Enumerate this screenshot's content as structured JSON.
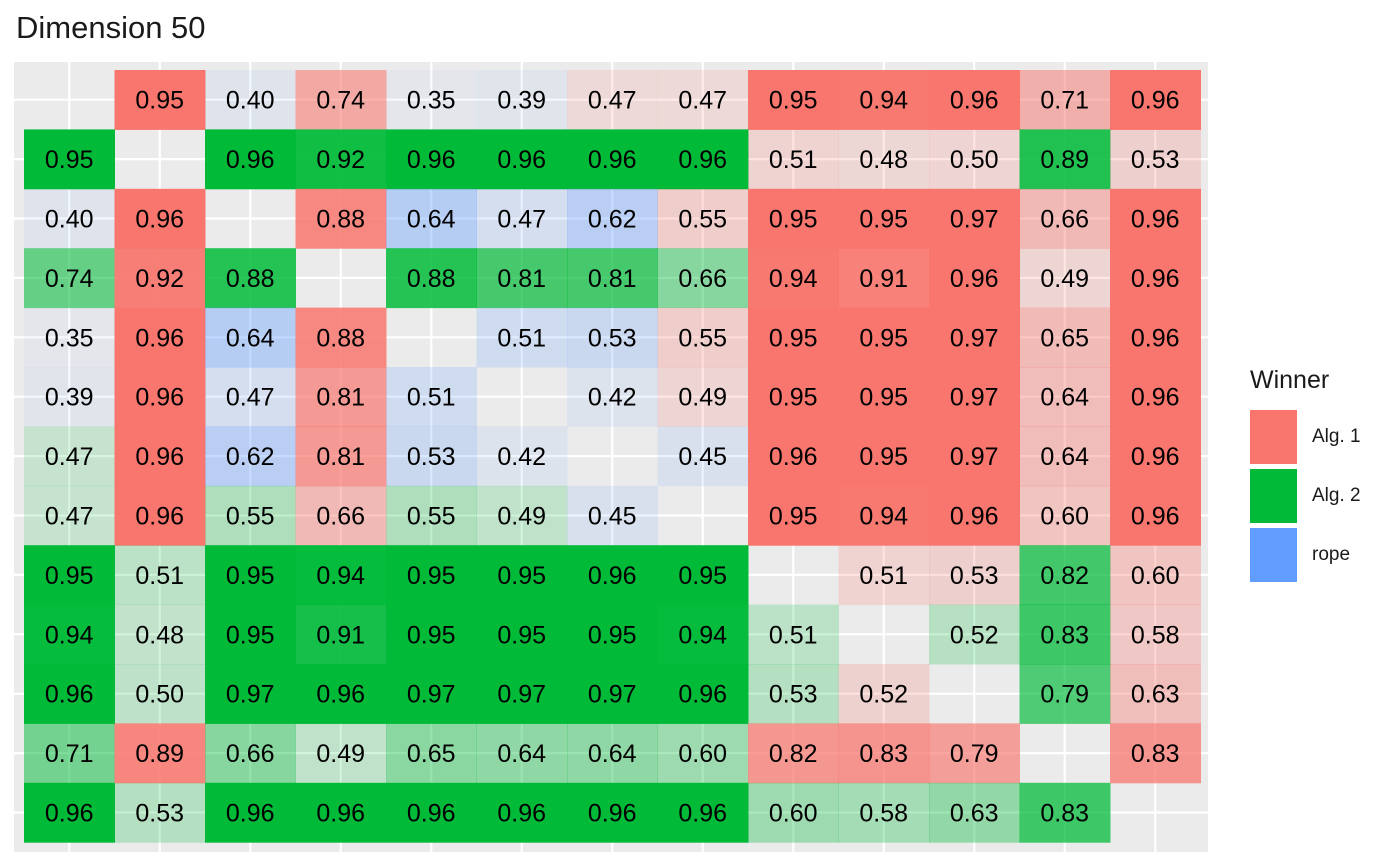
{
  "chart_data": {
    "type": "heatmap",
    "title": "Dimension 50",
    "legend": {
      "title": "Winner",
      "placement": "right",
      "items": [
        {
          "label": "Alg. 1",
          "color": "#F8766D"
        },
        {
          "label": "Alg. 2",
          "color": "#00BA38"
        },
        {
          "label": "rope",
          "color": "#619CFF"
        }
      ]
    },
    "grid": true,
    "panel_background": "#EBEBEB",
    "winner_codes": {
      "1": "Alg. 1",
      "2": "Alg. 2",
      "r": "rope"
    },
    "values": [
      [
        null,
        0.95,
        0.4,
        0.74,
        0.35,
        0.39,
        0.47,
        0.47,
        0.95,
        0.94,
        0.96,
        0.71,
        0.96
      ],
      [
        0.95,
        null,
        0.96,
        0.92,
        0.96,
        0.96,
        0.96,
        0.96,
        0.51,
        0.48,
        0.5,
        0.89,
        0.53
      ],
      [
        0.4,
        0.96,
        null,
        0.88,
        0.64,
        0.47,
        0.62,
        0.55,
        0.95,
        0.95,
        0.97,
        0.66,
        0.96
      ],
      [
        0.74,
        0.92,
        0.88,
        null,
        0.88,
        0.81,
        0.81,
        0.66,
        0.94,
        0.91,
        0.96,
        0.49,
        0.96
      ],
      [
        0.35,
        0.96,
        0.64,
        0.88,
        null,
        0.51,
        0.53,
        0.55,
        0.95,
        0.95,
        0.97,
        0.65,
        0.96
      ],
      [
        0.39,
        0.96,
        0.47,
        0.81,
        0.51,
        null,
        0.42,
        0.49,
        0.95,
        0.95,
        0.97,
        0.64,
        0.96
      ],
      [
        0.47,
        0.96,
        0.62,
        0.81,
        0.53,
        0.42,
        null,
        0.45,
        0.96,
        0.95,
        0.97,
        0.64,
        0.96
      ],
      [
        0.47,
        0.96,
        0.55,
        0.66,
        0.55,
        0.49,
        0.45,
        null,
        0.95,
        0.94,
        0.96,
        0.6,
        0.96
      ],
      [
        0.95,
        0.51,
        0.95,
        0.94,
        0.95,
        0.95,
        0.96,
        0.95,
        null,
        0.51,
        0.53,
        0.82,
        0.6
      ],
      [
        0.94,
        0.48,
        0.95,
        0.91,
        0.95,
        0.95,
        0.95,
        0.94,
        0.51,
        null,
        0.52,
        0.83,
        0.58
      ],
      [
        0.96,
        0.5,
        0.97,
        0.96,
        0.97,
        0.97,
        0.97,
        0.96,
        0.53,
        0.52,
        null,
        0.79,
        0.63
      ],
      [
        0.71,
        0.89,
        0.66,
        0.49,
        0.65,
        0.64,
        0.64,
        0.6,
        0.82,
        0.83,
        0.79,
        null,
        0.83
      ],
      [
        0.96,
        0.53,
        0.96,
        0.96,
        0.96,
        0.96,
        0.96,
        0.96,
        0.6,
        0.58,
        0.63,
        0.83,
        null
      ]
    ],
    "winners": [
      [
        null,
        "1",
        "r",
        "1",
        "r",
        "r",
        "1",
        "1",
        "1",
        "1",
        "1",
        "1",
        "1"
      ],
      [
        "2",
        null,
        "2",
        "2",
        "2",
        "2",
        "2",
        "2",
        "1",
        "1",
        "1",
        "2",
        "1"
      ],
      [
        "r",
        "1",
        null,
        "1",
        "r",
        "r",
        "r",
        "1",
        "1",
        "1",
        "1",
        "1",
        "1"
      ],
      [
        "2",
        "1",
        "2",
        null,
        "2",
        "2",
        "2",
        "2",
        "1",
        "1",
        "1",
        "1",
        "1"
      ],
      [
        "r",
        "1",
        "r",
        "1",
        null,
        "r",
        "r",
        "1",
        "1",
        "1",
        "1",
        "1",
        "1"
      ],
      [
        "r",
        "1",
        "r",
        "1",
        "r",
        null,
        "r",
        "1",
        "1",
        "1",
        "1",
        "1",
        "1"
      ],
      [
        "2",
        "1",
        "r",
        "1",
        "r",
        "r",
        null,
        "r",
        "1",
        "1",
        "1",
        "1",
        "1"
      ],
      [
        "2",
        "1",
        "2",
        "1",
        "2",
        "2",
        "r",
        null,
        "1",
        "1",
        "1",
        "1",
        "1"
      ],
      [
        "2",
        "2",
        "2",
        "2",
        "2",
        "2",
        "2",
        "2",
        null,
        "1",
        "1",
        "2",
        "1"
      ],
      [
        "2",
        "2",
        "2",
        "2",
        "2",
        "2",
        "2",
        "2",
        "2",
        null,
        "2",
        "2",
        "1"
      ],
      [
        "2",
        "2",
        "2",
        "2",
        "2",
        "2",
        "2",
        "2",
        "2",
        "1",
        null,
        "2",
        "1"
      ],
      [
        "2",
        "1",
        "2",
        "2",
        "2",
        "2",
        "2",
        "2",
        "1",
        "1",
        "1",
        null,
        "1"
      ],
      [
        "2",
        "2",
        "2",
        "2",
        "2",
        "2",
        "2",
        "2",
        "2",
        "2",
        "2",
        "2",
        null
      ]
    ]
  }
}
